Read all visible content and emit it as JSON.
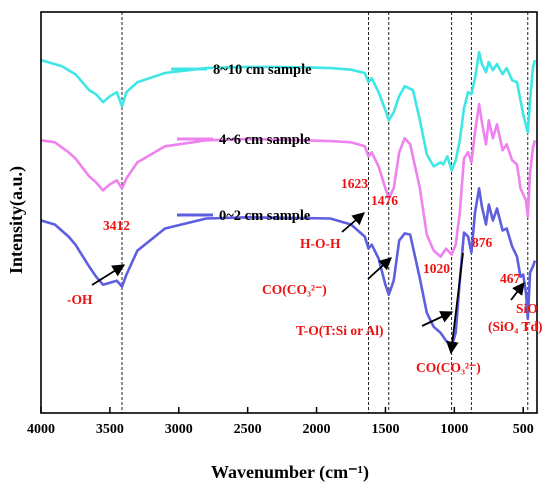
{
  "chart_data": {
    "type": "line",
    "xlabel": "Wavenumber (cm⁻¹)",
    "ylabel": "Intensity(a.u.)",
    "xlim": [
      4000,
      400
    ],
    "x_ticks": [
      "4000",
      "3500",
      "3000",
      "2500",
      "2000",
      "1500",
      "1000",
      "500"
    ],
    "x_tick_values": [
      4000,
      3500,
      3000,
      2500,
      2000,
      1500,
      1000,
      500
    ],
    "ylim": [
      0,
      100
    ],
    "grid": false,
    "reference_lines_cm": [
      3412,
      1623,
      1476,
      1020,
      876,
      467
    ],
    "series": [
      {
        "name": "8~10 cm sample",
        "color": "#3fe6e6",
        "points": [
          [
            4000,
            88.0
          ],
          [
            3850,
            86.5
          ],
          [
            3750,
            84.5
          ],
          [
            3650,
            80.5
          ],
          [
            3600,
            79.5
          ],
          [
            3550,
            77.5
          ],
          [
            3500,
            79.0
          ],
          [
            3450,
            80.0
          ],
          [
            3412,
            76.5
          ],
          [
            3380,
            80.0
          ],
          [
            3300,
            82.5
          ],
          [
            3100,
            84.8
          ],
          [
            2800,
            86.0
          ],
          [
            2500,
            86.3
          ],
          [
            2100,
            86.2
          ],
          [
            1900,
            86.0
          ],
          [
            1750,
            85.6
          ],
          [
            1650,
            84.8
          ],
          [
            1623,
            82.5
          ],
          [
            1600,
            83.5
          ],
          [
            1550,
            80.0
          ],
          [
            1500,
            75.5
          ],
          [
            1476,
            73.0
          ],
          [
            1440,
            75.0
          ],
          [
            1400,
            79.0
          ],
          [
            1360,
            81.5
          ],
          [
            1300,
            80.5
          ],
          [
            1250,
            73.0
          ],
          [
            1200,
            64.5
          ],
          [
            1150,
            61.5
          ],
          [
            1100,
            62.5
          ],
          [
            1080,
            62.0
          ],
          [
            1050,
            64.0
          ],
          [
            1020,
            60.5
          ],
          [
            990,
            63.0
          ],
          [
            960,
            68.0
          ],
          [
            930,
            76.0
          ],
          [
            900,
            80.0
          ],
          [
            876,
            79.5
          ],
          [
            850,
            83.5
          ],
          [
            820,
            90.0
          ],
          [
            800,
            87.0
          ],
          [
            770,
            85.0
          ],
          [
            750,
            87.5
          ],
          [
            720,
            85.5
          ],
          [
            690,
            87.0
          ],
          [
            650,
            84.5
          ],
          [
            620,
            86.0
          ],
          [
            580,
            83.0
          ],
          [
            545,
            82.5
          ],
          [
            520,
            78.0
          ],
          [
            500,
            74.5
          ],
          [
            467,
            70.0
          ],
          [
            450,
            78.0
          ],
          [
            430,
            86.0
          ],
          [
            415,
            88.0
          ]
        ]
      },
      {
        "name": "4~6 cm sample",
        "color": "#ee82ee",
        "points": [
          [
            4000,
            68.0
          ],
          [
            3900,
            67.5
          ],
          [
            3800,
            65.0
          ],
          [
            3750,
            63.5
          ],
          [
            3650,
            59.0
          ],
          [
            3600,
            57.5
          ],
          [
            3550,
            55.5
          ],
          [
            3500,
            57.0
          ],
          [
            3450,
            58.0
          ],
          [
            3412,
            56.0
          ],
          [
            3380,
            58.5
          ],
          [
            3300,
            62.5
          ],
          [
            3100,
            66.5
          ],
          [
            2800,
            68.0
          ],
          [
            2500,
            68.3
          ],
          [
            2100,
            68.0
          ],
          [
            1900,
            67.8
          ],
          [
            1750,
            67.5
          ],
          [
            1650,
            66.5
          ],
          [
            1623,
            64.0
          ],
          [
            1600,
            65.0
          ],
          [
            1550,
            61.5
          ],
          [
            1500,
            56.0
          ],
          [
            1476,
            53.5
          ],
          [
            1440,
            56.0
          ],
          [
            1400,
            65.0
          ],
          [
            1360,
            68.5
          ],
          [
            1320,
            67.0
          ],
          [
            1250,
            56.0
          ],
          [
            1200,
            44.5
          ],
          [
            1150,
            40.5
          ],
          [
            1100,
            39.0
          ],
          [
            1060,
            41.0
          ],
          [
            1020,
            39.5
          ],
          [
            990,
            42.0
          ],
          [
            960,
            50.0
          ],
          [
            930,
            63.5
          ],
          [
            900,
            65.0
          ],
          [
            876,
            62.5
          ],
          [
            850,
            70.0
          ],
          [
            820,
            77.0
          ],
          [
            800,
            72.5
          ],
          [
            770,
            67.0
          ],
          [
            750,
            73.0
          ],
          [
            720,
            68.5
          ],
          [
            690,
            72.0
          ],
          [
            650,
            65.5
          ],
          [
            620,
            67.0
          ],
          [
            580,
            63.0
          ],
          [
            545,
            62.0
          ],
          [
            520,
            56.0
          ],
          [
            500,
            54.5
          ],
          [
            480,
            53.0
          ],
          [
            467,
            49.0
          ],
          [
            450,
            60.0
          ],
          [
            430,
            66.0
          ],
          [
            415,
            68.0
          ]
        ]
      },
      {
        "name": "0~2 cm sample",
        "color": "#5e5ee0",
        "points": [
          [
            4000,
            48.0
          ],
          [
            3900,
            47.0
          ],
          [
            3800,
            44.0
          ],
          [
            3750,
            42.0
          ],
          [
            3650,
            36.5
          ],
          [
            3600,
            34.0
          ],
          [
            3550,
            32.0
          ],
          [
            3500,
            32.5
          ],
          [
            3450,
            33.0
          ],
          [
            3412,
            31.5
          ],
          [
            3380,
            34.5
          ],
          [
            3300,
            40.5
          ],
          [
            3100,
            46.0
          ],
          [
            2800,
            48.5
          ],
          [
            2500,
            48.8
          ],
          [
            2100,
            48.6
          ],
          [
            1900,
            48.5
          ],
          [
            1750,
            47.0
          ],
          [
            1650,
            44.0
          ],
          [
            1623,
            41.0
          ],
          [
            1600,
            42.0
          ],
          [
            1550,
            38.5
          ],
          [
            1500,
            32.0
          ],
          [
            1476,
            29.5
          ],
          [
            1440,
            33.0
          ],
          [
            1400,
            43.0
          ],
          [
            1360,
            44.8
          ],
          [
            1320,
            44.5
          ],
          [
            1250,
            33.5
          ],
          [
            1200,
            25.0
          ],
          [
            1150,
            21.5
          ],
          [
            1100,
            20.0
          ],
          [
            1060,
            18.0
          ],
          [
            1040,
            17.5
          ],
          [
            1020,
            16.5
          ],
          [
            990,
            20.0
          ],
          [
            960,
            33.0
          ],
          [
            930,
            45.0
          ],
          [
            900,
            44.0
          ],
          [
            876,
            40.0
          ],
          [
            850,
            50.0
          ],
          [
            820,
            56.0
          ],
          [
            800,
            51.5
          ],
          [
            770,
            47.0
          ],
          [
            750,
            52.0
          ],
          [
            720,
            48.0
          ],
          [
            690,
            51.0
          ],
          [
            650,
            45.5
          ],
          [
            620,
            46.0
          ],
          [
            580,
            41.5
          ],
          [
            545,
            39.0
          ],
          [
            520,
            34.0
          ],
          [
            500,
            34.5
          ],
          [
            480,
            30.0
          ],
          [
            467,
            23.5
          ],
          [
            450,
            35.0
          ],
          [
            430,
            36.5
          ],
          [
            415,
            38.0
          ]
        ]
      }
    ],
    "annotations": [
      {
        "text": "3412",
        "color": "#ee1111"
      },
      {
        "text": "-OH",
        "color": "#ee1111"
      },
      {
        "text": "1623",
        "color": "#ee1111"
      },
      {
        "text": "1476",
        "color": "#ee1111"
      },
      {
        "text": "H-O-H",
        "color": "#ee1111"
      },
      {
        "text": "1020",
        "color": "#ee1111"
      },
      {
        "text": "876",
        "color": "#ee1111"
      },
      {
        "text": "467",
        "color": "#ee1111"
      },
      {
        "text": "SiO",
        "color": "#ee1111"
      },
      {
        "text": "(SiO₄ Td)",
        "color": "#ee1111"
      },
      {
        "text": "CO(CO₃²⁻)",
        "color": "#ee1111"
      },
      {
        "text": "T-O(T:Si or Al)",
        "color": "#ee1111"
      },
      {
        "text": "CO(CO₃²⁻)",
        "color": "#ee1111"
      }
    ]
  }
}
